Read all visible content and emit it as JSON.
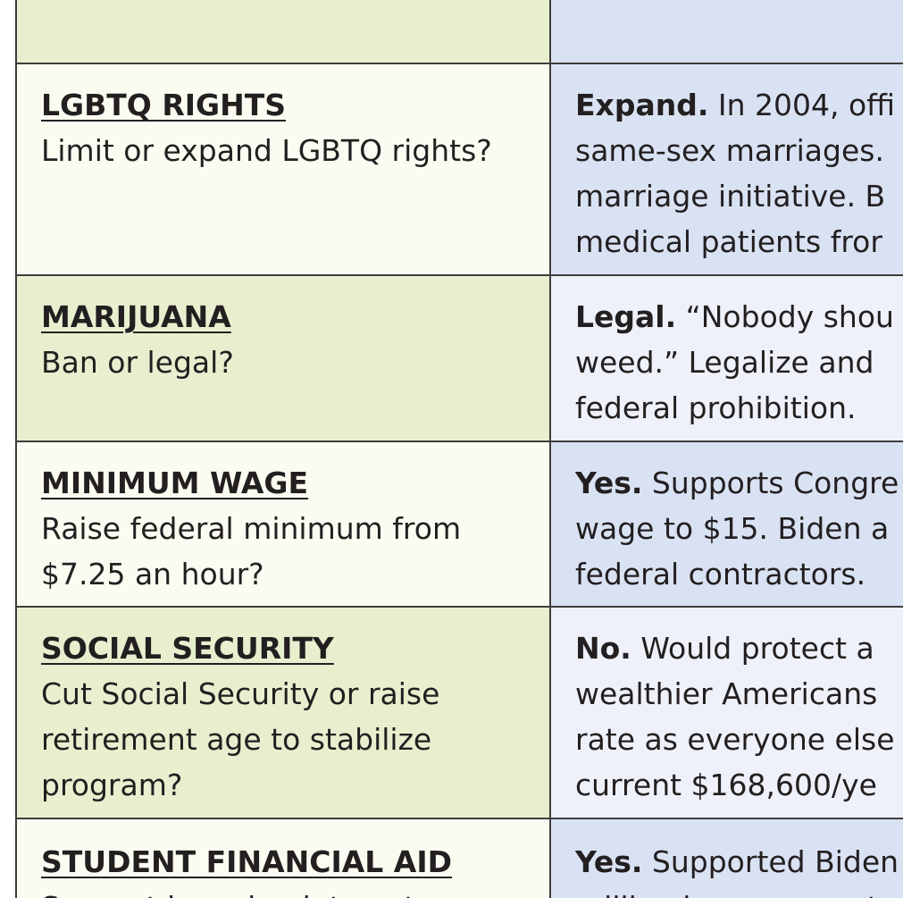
{
  "rows": [
    {
      "topic": "",
      "question_lines": [],
      "answer_lead": "",
      "answer_lines": []
    },
    {
      "topic": "LGBTQ RIGHTS",
      "question_lines": [
        "Limit or expand LGBTQ rights?"
      ],
      "answer_lead": "Expand.",
      "answer_first": " In 2004, offi",
      "answer_lines": [
        "same-sex marriages.",
        "marriage initiative. B",
        "medical patients fror"
      ]
    },
    {
      "topic": "MARIJUANA",
      "question_lines": [
        "Ban or legal?"
      ],
      "answer_lead": "Legal.",
      "answer_first": " “Nobody shou",
      "answer_lines": [
        "weed.” Legalize and",
        "federal prohibition."
      ]
    },
    {
      "topic": "MINIMUM WAGE",
      "question_lines": [
        "Raise federal minimum from",
        "$7.25 an hour?"
      ],
      "answer_lead": "Yes.",
      "answer_first": " Supports Congre",
      "answer_lines": [
        "wage to $15. Biden a",
        "federal contractors."
      ]
    },
    {
      "topic": "SOCIAL SECURITY",
      "question_lines": [
        "Cut Social Security or raise",
        "retirement age to stabilize",
        "program?"
      ],
      "answer_lead": "No.",
      "answer_first": " Would protect a",
      "answer_lines": [
        "wealthier Americans",
        "rate as everyone else",
        "current $168,600/ye"
      ]
    },
    {
      "topic": "STUDENT FINANCIAL AID",
      "question_lines": [
        "Support lowering interest on"
      ],
      "answer_lead": "Yes.",
      "answer_first": " Supported Biden",
      "answer_lines": [
        "million borrowers, ot"
      ]
    }
  ]
}
